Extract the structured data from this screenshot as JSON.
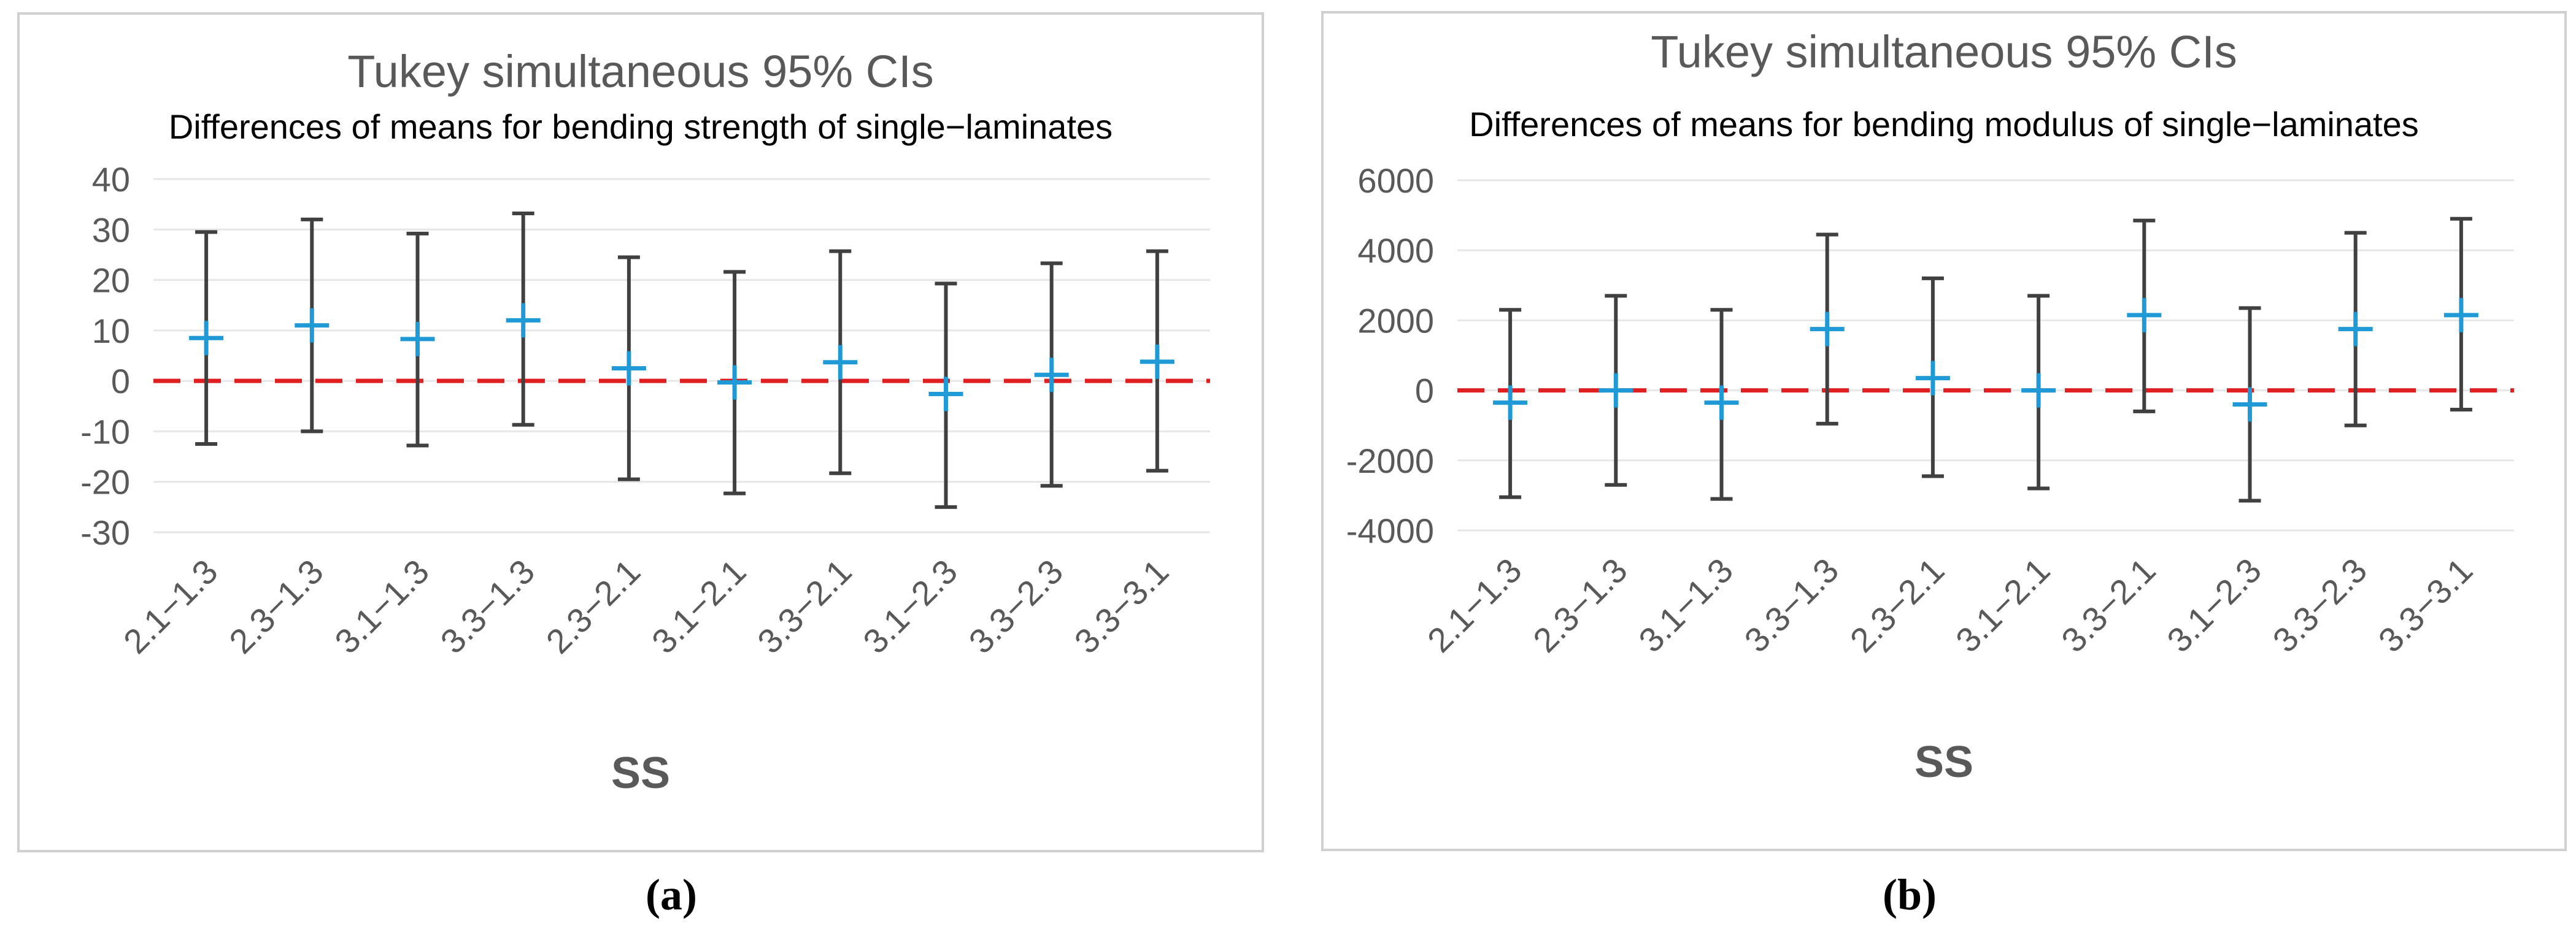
{
  "colors": {
    "ci_bar": "#404040",
    "mean_marker": "#1f9ad6",
    "reference_line": "#e02020",
    "gridline": "#e6e6e6",
    "text": "#595959"
  },
  "chart_data": [
    {
      "type": "errorbar",
      "panel_label": "(a)",
      "title": "Tukey simultaneous 95% CIs",
      "subtitle": "Differences of means for bending strength of single−laminates",
      "xlabel": "SS",
      "ylabel": "",
      "ylim": [
        -30,
        40
      ],
      "yticks": [
        -30,
        -20,
        -10,
        0,
        10,
        20,
        30,
        40
      ],
      "grid": true,
      "reference_line": 0,
      "categories": [
        "2.1−1.3",
        "2.3−1.3",
        "3.1−1.3",
        "3.3−1.3",
        "2.3−2.1",
        "3.1−2.1",
        "3.3−2.1",
        "3.1−2.3",
        "3.3−2.3",
        "3.3−3.1"
      ],
      "mean": [
        8.5,
        11,
        8.3,
        12,
        2.5,
        -0.3,
        3.7,
        -2.6,
        1.2,
        3.8
      ],
      "lower": [
        -12.5,
        -10,
        -12.8,
        -8.7,
        -19.5,
        -22.3,
        -18.3,
        -25,
        -20.8,
        -17.8
      ],
      "upper": [
        29.5,
        32,
        29.2,
        33.2,
        24.5,
        21.6,
        25.7,
        19.3,
        23.3,
        25.7
      ]
    },
    {
      "type": "errorbar",
      "panel_label": "(b)",
      "title": "Tukey simultaneous 95% CIs",
      "subtitle": "Differences of means for bending modulus of single−laminates",
      "xlabel": "SS",
      "ylabel": "",
      "ylim": [
        -4000,
        6000
      ],
      "yticks": [
        -4000,
        -2000,
        0,
        2000,
        4000,
        6000
      ],
      "grid": true,
      "reference_line": 0,
      "categories": [
        "2.1−1.3",
        "2.3−1.3",
        "3.1−1.3",
        "3.3−1.3",
        "2.3−2.1",
        "3.1−2.1",
        "3.3−2.1",
        "3.1−2.3",
        "3.3−2.3",
        "3.3−3.1"
      ],
      "mean": [
        -350,
        0,
        -350,
        1750,
        350,
        0,
        2150,
        -400,
        1750,
        2150
      ],
      "lower": [
        -3050,
        -2700,
        -3100,
        -950,
        -2450,
        -2800,
        -600,
        -3150,
        -1000,
        -550
      ],
      "upper": [
        2300,
        2700,
        2300,
        4450,
        3200,
        2700,
        4850,
        2350,
        4500,
        4900
      ]
    }
  ]
}
